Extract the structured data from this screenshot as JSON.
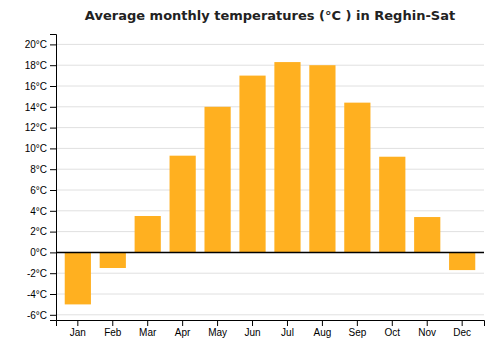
{
  "chart_data": {
    "type": "bar",
    "title": "Average monthly temperatures (°C ) in Reghin-Sat",
    "categories": [
      "Jan",
      "Feb",
      "Mar",
      "Apr",
      "May",
      "Jun",
      "Jul",
      "Aug",
      "Sep",
      "Oct",
      "Nov",
      "Dec"
    ],
    "values": [
      -5.0,
      -1.5,
      3.5,
      9.3,
      14.0,
      17.0,
      18.3,
      18.0,
      14.4,
      9.2,
      3.4,
      -1.7
    ],
    "color": "#FFB020",
    "ylim": [
      -6.5,
      21
    ],
    "yticks": [
      {
        "value": -6,
        "label": "-6°C"
      },
      {
        "value": -4,
        "label": "-4°C"
      },
      {
        "value": -2,
        "label": "-2°C"
      },
      {
        "value": 0,
        "label": "0°C"
      },
      {
        "value": 2,
        "label": "2°C"
      },
      {
        "value": 4,
        "label": "4°C"
      },
      {
        "value": 6,
        "label": "6°C"
      },
      {
        "value": 8,
        "label": "8°C"
      },
      {
        "value": 10,
        "label": "10°C"
      },
      {
        "value": 12,
        "label": "12°C"
      },
      {
        "value": 14,
        "label": "14°C"
      },
      {
        "value": 16,
        "label": "16°C"
      },
      {
        "value": 18,
        "label": "18°C"
      },
      {
        "value": 20,
        "label": "20°C"
      }
    ],
    "grid": true
  }
}
